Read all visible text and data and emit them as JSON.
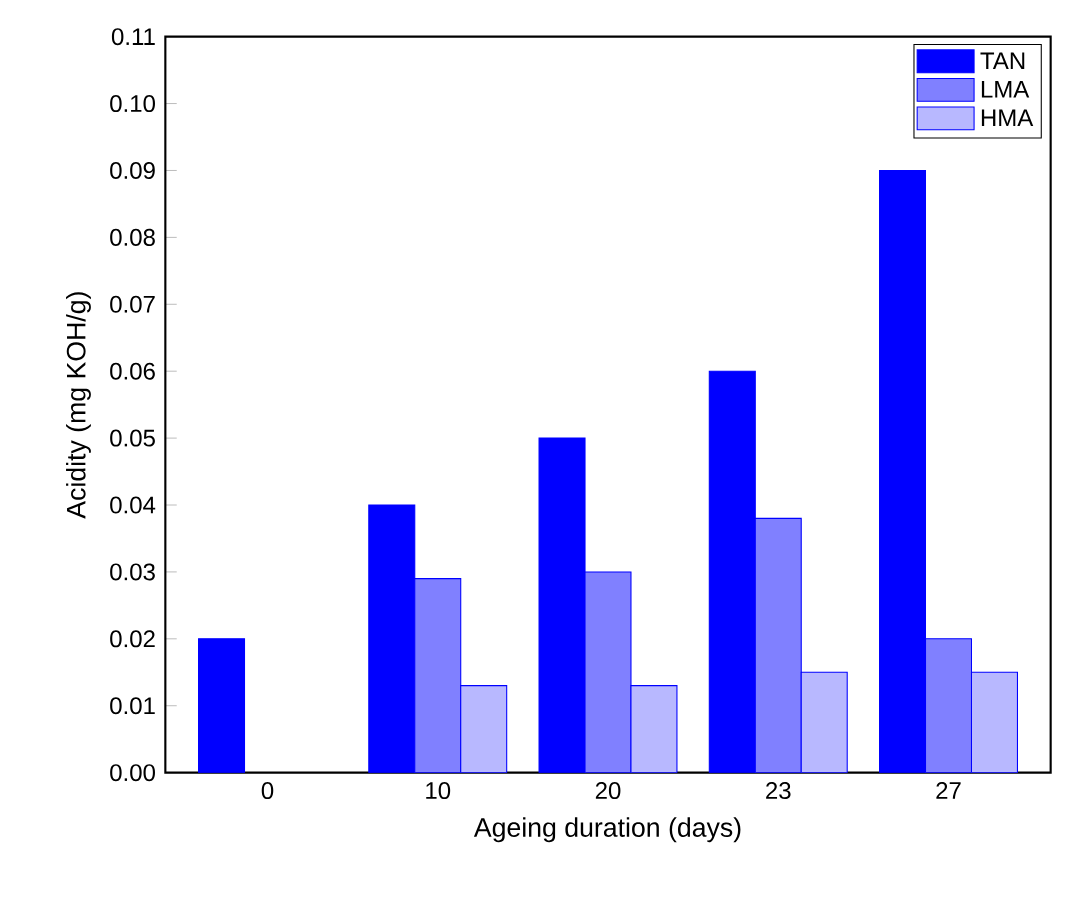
{
  "chart_data": {
    "type": "bar",
    "xlabel": "Ageing duration (days)",
    "ylabel": "Acidity (mg KOH/g)",
    "categories": [
      "0",
      "10",
      "20",
      "23",
      "27"
    ],
    "series": [
      {
        "name": "TAN",
        "color": "#0000ff",
        "values": [
          0.02,
          0.04,
          0.05,
          0.06,
          0.09
        ]
      },
      {
        "name": "LMA",
        "color": "#8080ff",
        "values": [
          null,
          0.029,
          0.03,
          0.038,
          0.02
        ]
      },
      {
        "name": "HMA",
        "color": "#b8b8ff",
        "values": [
          null,
          0.013,
          0.013,
          0.015,
          0.015
        ]
      }
    ],
    "ylim": [
      0,
      0.11
    ],
    "yticks": [
      {
        "value": 0,
        "label": "0.00"
      },
      {
        "value": 0.01,
        "label": "0.01"
      },
      {
        "value": 0.02,
        "label": "0.02"
      },
      {
        "value": 0.03,
        "label": "0.03"
      },
      {
        "value": 0.04,
        "label": "0.04"
      },
      {
        "value": 0.05,
        "label": "0.05"
      },
      {
        "value": 0.06,
        "label": "0.06"
      },
      {
        "value": 0.07,
        "label": "0.07"
      },
      {
        "value": 0.08,
        "label": "0.08"
      },
      {
        "value": 0.09,
        "label": "0.09"
      },
      {
        "value": 0.1,
        "label": "0.10"
      },
      {
        "value": 0.11,
        "label": "0.11"
      }
    ],
    "legend": "top right",
    "grid": false
  }
}
